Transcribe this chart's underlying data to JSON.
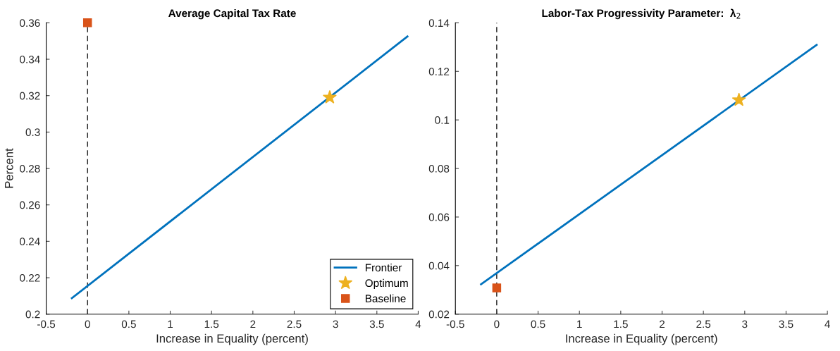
{
  "chart_data": [
    {
      "type": "line",
      "title": "Average Capital Tax Rate",
      "xlabel": "Increase in Equality (percent)",
      "ylabel": "Percent",
      "xlim": [
        -0.5,
        4
      ],
      "xticks": [
        -0.5,
        0,
        0.5,
        1,
        1.5,
        2,
        2.5,
        3,
        3.5,
        4
      ],
      "ylim": [
        0.2,
        0.36
      ],
      "yticks": [
        0.2,
        0.22,
        0.24,
        0.26,
        0.28,
        0.3,
        0.32,
        0.34,
        0.36
      ],
      "series": [
        {
          "name": "Frontier",
          "color": "#0072bd",
          "x": [
            -0.19,
            3.87
          ],
          "values": [
            0.2088,
            0.3525
          ],
          "marker": "none"
        },
        {
          "name": "Optimum",
          "type": "scatter",
          "color": "#edb120",
          "x": [
            2.93
          ],
          "values": [
            0.319
          ],
          "marker": "star"
        },
        {
          "name": "Baseline",
          "type": "scatter",
          "color": "#d95319",
          "x": [
            0
          ],
          "values": [
            0.36
          ],
          "marker": "square"
        }
      ],
      "ref_lines": [
        {
          "axis": "x",
          "value": 0,
          "color": "#000000",
          "line_style": "dashed"
        }
      ],
      "legend": "bottom right",
      "grid": false
    },
    {
      "type": "line",
      "title": "Labor-Tax Progressivity Parameter:  λ$_{2}$",
      "xlabel": "Increase in Equality (percent)",
      "xlim": [
        -0.5,
        4
      ],
      "xticks": [
        -0.5,
        0,
        0.5,
        1,
        1.5,
        2,
        2.5,
        3,
        3.5,
        4
      ],
      "ylim": [
        0.02,
        0.14
      ],
      "yticks": [
        0.02,
        0.04,
        0.06,
        0.08,
        0.1,
        0.12,
        0.14
      ],
      "series": [
        {
          "color": "#0072bd",
          "x": [
            -0.19,
            3.87
          ],
          "values": [
            0.0323,
            0.1309
          ],
          "marker": "none"
        },
        {
          "type": "scatter",
          "color": "#edb120",
          "x": [
            2.93
          ],
          "values": [
            0.1082
          ],
          "marker": "star"
        },
        {
          "type": "scatter",
          "color": "#d95319",
          "x": [
            0
          ],
          "values": [
            0.0308
          ],
          "marker": "square"
        }
      ],
      "ref_lines": [
        {
          "axis": "x",
          "value": 0,
          "color": "#000000",
          "line_style": "dashed"
        }
      ],
      "legend": false,
      "grid": false
    }
  ]
}
